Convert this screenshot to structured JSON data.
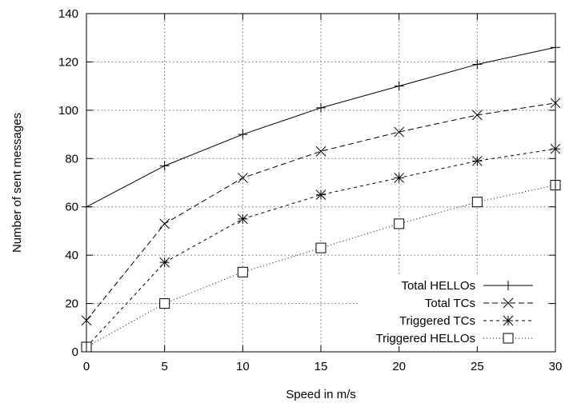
{
  "chart_data": {
    "type": "line",
    "title": "",
    "xlabel": "Speed in m/s",
    "ylabel": "Number of sent messages",
    "xlim": [
      0,
      30
    ],
    "ylim": [
      0,
      140
    ],
    "xticks": [
      0,
      5,
      10,
      15,
      20,
      25,
      30
    ],
    "yticks": [
      0,
      20,
      40,
      60,
      80,
      100,
      120,
      140
    ],
    "grid": true,
    "legend_position": "bottom-right",
    "x": [
      0,
      5,
      10,
      15,
      20,
      25,
      30
    ],
    "series": [
      {
        "name": "Total HELLOs",
        "marker": "plus",
        "dash": "solid",
        "values": [
          60,
          77,
          90,
          101,
          110,
          119,
          126
        ]
      },
      {
        "name": "Total TCs",
        "marker": "cross",
        "dash": "dashed",
        "values": [
          13,
          53,
          72,
          83,
          91,
          98,
          103
        ]
      },
      {
        "name": "Triggered TCs",
        "marker": "star",
        "dash": "short-dashed",
        "values": [
          2,
          37,
          55,
          65,
          72,
          79,
          84
        ]
      },
      {
        "name": "Triggered HELLOs",
        "marker": "square",
        "dash": "dotted",
        "values": [
          2,
          20,
          33,
          43,
          53,
          62,
          69
        ]
      }
    ]
  }
}
